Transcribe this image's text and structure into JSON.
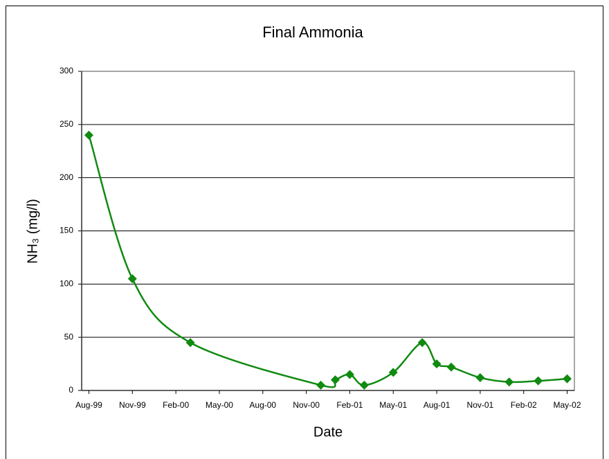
{
  "chart_data": {
    "type": "line",
    "title": "Final Ammonia",
    "x_label": "Date",
    "y_label": "NH₃ (mg/l)",
    "x": [
      0,
      3,
      7,
      16,
      17,
      18,
      19,
      21,
      23,
      24,
      25,
      27,
      29,
      31,
      33
    ],
    "series": [
      {
        "name": "Final Ammonia",
        "color": "#108a10",
        "values": [
          240,
          105,
          45,
          5,
          10,
          15,
          5,
          17,
          45,
          25,
          22,
          12,
          8,
          9,
          11
        ]
      }
    ],
    "xlim": [
      -0.5,
      33.5
    ],
    "xticks": [
      {
        "value": 0,
        "label": "Aug-99"
      },
      {
        "value": 3,
        "label": "Nov-99"
      },
      {
        "value": 6,
        "label": "Feb-00"
      },
      {
        "value": 9,
        "label": "May-00"
      },
      {
        "value": 12,
        "label": "Aug-00"
      },
      {
        "value": 15,
        "label": "Nov-00"
      },
      {
        "value": 18,
        "label": "Feb-01"
      },
      {
        "value": 21,
        "label": "May-01"
      },
      {
        "value": 24,
        "label": "Aug-01"
      },
      {
        "value": 27,
        "label": "Nov-01"
      },
      {
        "value": 30,
        "label": "Feb-02"
      },
      {
        "value": 33,
        "label": "May-02"
      }
    ],
    "ylim": [
      0,
      300
    ],
    "yticks": [
      0,
      50,
      100,
      150,
      200,
      250,
      300
    ],
    "grid": true
  }
}
